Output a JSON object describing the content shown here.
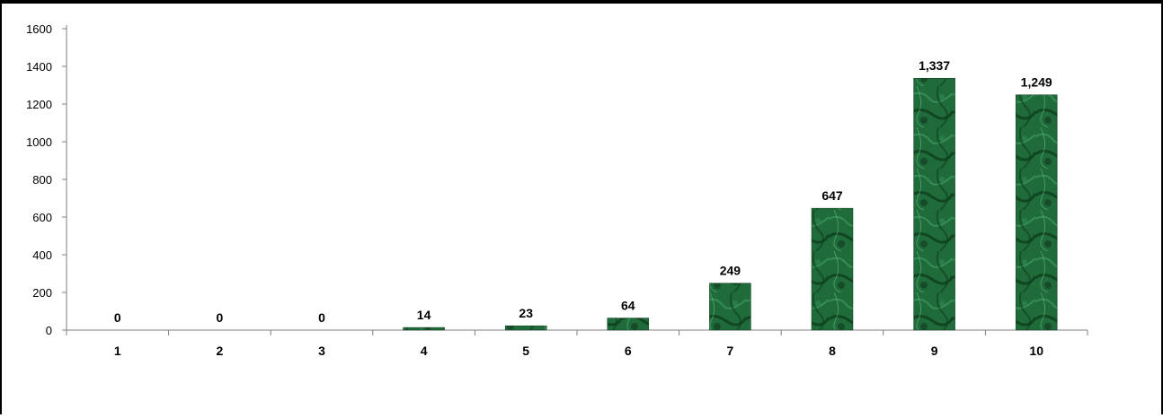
{
  "chart_data": {
    "type": "bar",
    "categories": [
      "1",
      "2",
      "3",
      "4",
      "5",
      "6",
      "7",
      "8",
      "9",
      "10"
    ],
    "values": [
      0,
      0,
      0,
      14,
      23,
      64,
      249,
      647,
      1337,
      1249
    ],
    "data_labels": [
      "0",
      "0",
      "0",
      "14",
      "23",
      "64",
      "249",
      "647",
      "1,337",
      "1,249"
    ],
    "ylim": [
      0,
      1600
    ],
    "yticks": [
      0,
      200,
      400,
      600,
      800,
      1000,
      1200,
      1400,
      1600
    ],
    "ytick_labels": [
      "0",
      "200",
      "400",
      "600",
      "800",
      "1000",
      "1200",
      "1400",
      "1600"
    ],
    "title": "",
    "xlabel": "",
    "ylabel": "",
    "grid": false,
    "legend": "none",
    "colors": {
      "bar_dark": "#0d3d1c",
      "bar_mid": "#1f6b3a",
      "bar_light": "#3f9a5f",
      "axis": "#7f7f7f",
      "frame": "#000000"
    }
  }
}
